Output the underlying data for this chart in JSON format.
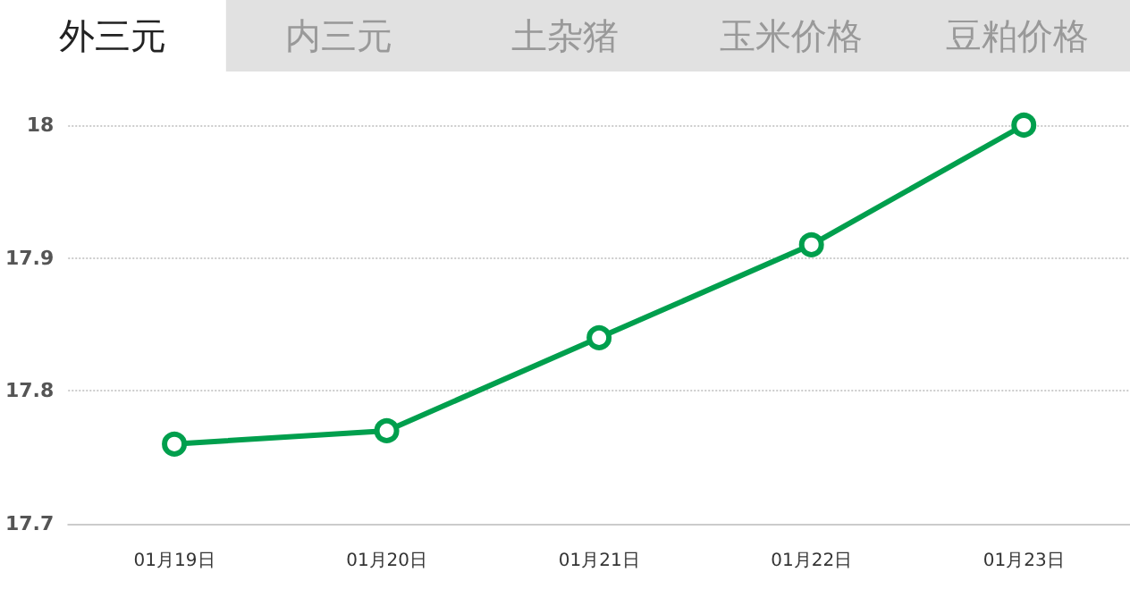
{
  "chart_data": {
    "type": "line",
    "title": "外三元",
    "annotations": [
      "内三元",
      "土杂猪",
      "玉米价格",
      "豆粕价格"
    ],
    "categories": [
      "01月19日",
      "01月20日",
      "01月21日",
      "01月22日",
      "01月23日"
    ],
    "series": [
      {
        "color": "#009f4d",
        "values": [
          17.76,
          17.77,
          17.84,
          17.91,
          18.0
        ]
      }
    ],
    "ylim": [
      17.7,
      18
    ],
    "yticks": [
      17.7,
      17.8,
      17.9,
      18
    ],
    "grid": "y",
    "marker": "circle",
    "line_style": "solid"
  }
}
